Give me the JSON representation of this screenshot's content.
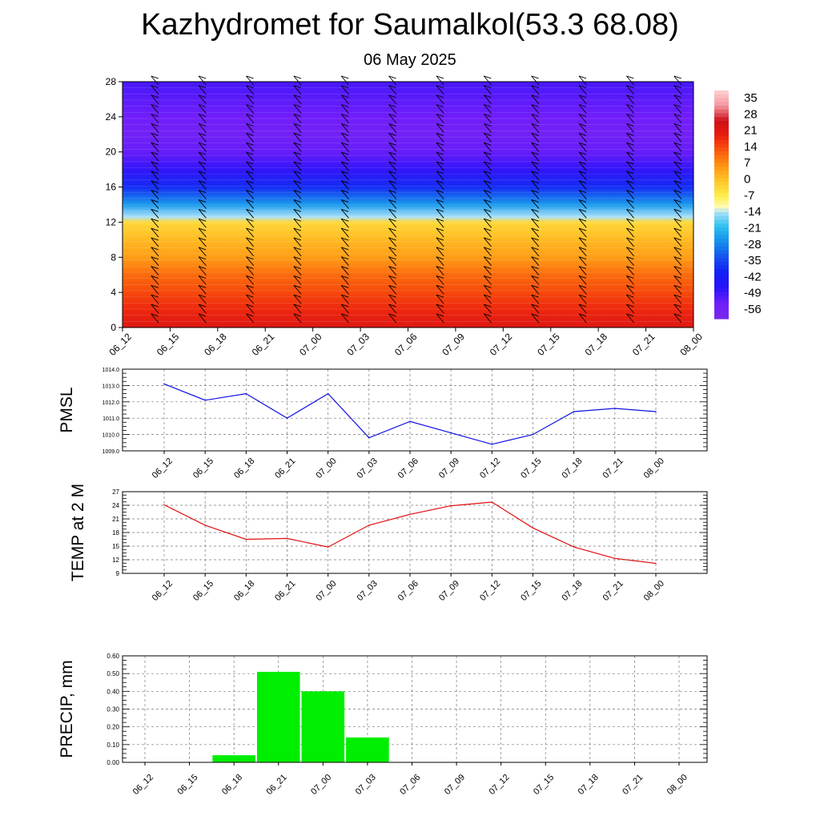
{
  "title": "Kazhydromet for Saumalkol(53.3 68.08)",
  "subtitle": "06 May 2025",
  "colors": {
    "pmsl": "#1010e0",
    "temp": "#e01010",
    "precip": "#00ee00"
  },
  "chart_data": [
    {
      "type": "heatmap",
      "title": "",
      "xlabel": "",
      "ylabel": "",
      "x_ticks": [
        "06_12",
        "06_15",
        "06_18",
        "06_21",
        "07_00",
        "07_03",
        "07_06",
        "07_09",
        "07_12",
        "07_15",
        "07_18",
        "07_21",
        "08_00"
      ],
      "y_ticks": [
        "0",
        "4",
        "8",
        "12",
        "16",
        "20",
        "24",
        "28"
      ],
      "ylim": [
        0,
        28
      ],
      "colorbar_labels": [
        "35",
        "28",
        "21",
        "14",
        "7",
        "0",
        "-7",
        "-14",
        "-21",
        "-28",
        "-35",
        "-42",
        "-49",
        "-56"
      ],
      "colorbar_range": [
        -63,
        42
      ],
      "profile": {
        "heights": [
          0,
          2,
          4,
          6,
          8,
          10,
          12,
          12.6,
          14,
          16,
          18,
          20,
          22,
          24,
          26,
          28
        ],
        "values": [
          24,
          20,
          16,
          12,
          6,
          2,
          -3,
          -14,
          -26,
          -40,
          -50,
          -55,
          -58,
          -56,
          -54,
          -52
        ]
      },
      "wind_barbs": true
    },
    {
      "type": "line",
      "ylabel": "PMSL",
      "x": [
        "06_12",
        "06_15",
        "06_18",
        "06_21",
        "07_00",
        "07_03",
        "07_06",
        "07_09",
        "07_12",
        "07_15",
        "07_18",
        "07_21",
        "08_00"
      ],
      "ylim": [
        1009.0,
        1014.0
      ],
      "y_ticks": [
        "1009.0",
        "1010.0",
        "1011.0",
        "1012.0",
        "1013.0",
        "1014.0"
      ],
      "grid": true,
      "series": [
        {
          "values": [
            1013.1,
            1012.1,
            1012.5,
            1011.0,
            1012.5,
            1009.8,
            1010.8,
            1010.1,
            1009.4,
            1010.0,
            1011.4,
            1011.6,
            1011.4
          ]
        }
      ]
    },
    {
      "type": "line",
      "ylabel": "TEMP at 2 M",
      "x": [
        "06_12",
        "06_15",
        "06_18",
        "06_21",
        "07_00",
        "07_03",
        "07_06",
        "07_09",
        "07_12",
        "07_15",
        "07_18",
        "07_21",
        "08_00"
      ],
      "ylim": [
        9,
        27
      ],
      "y_ticks": [
        "9",
        "12",
        "15",
        "18",
        "21",
        "24",
        "27"
      ],
      "grid": true,
      "series": [
        {
          "values": [
            24.1,
            19.6,
            16.5,
            16.7,
            14.8,
            19.6,
            22.0,
            23.9,
            24.7,
            19.0,
            14.8,
            12.3,
            11.2
          ]
        }
      ]
    },
    {
      "type": "bar",
      "ylabel": "PRECIP, mm",
      "x": [
        "06_12",
        "06_15",
        "06_18",
        "06_21",
        "07_00",
        "07_03",
        "07_06",
        "07_09",
        "07_12",
        "07_15",
        "07_18",
        "07_21",
        "08_00"
      ],
      "ylim": [
        0,
        0.6
      ],
      "y_ticks": [
        "0.00",
        "0.10",
        "0.20",
        "0.30",
        "0.40",
        "0.50",
        "0.60"
      ],
      "grid": true,
      "bars": [
        {
          "x": "06_18",
          "value": 0.04
        },
        {
          "x": "06_21",
          "value": 0.51
        },
        {
          "x": "07_00",
          "value": 0.4
        },
        {
          "x": "07_03",
          "value": 0.14
        }
      ]
    }
  ]
}
